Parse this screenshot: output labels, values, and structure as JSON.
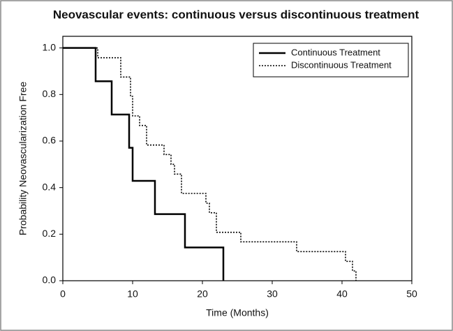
{
  "chart_data": {
    "type": "line",
    "title": "Neovascular events: continuous versus discontinuous treatment",
    "x_label": "Time (Months)",
    "y_label": "Probability Neovascularization Free",
    "xlim": [
      0,
      50
    ],
    "ylim": [
      0,
      1.05
    ],
    "xticks": [
      0,
      10,
      20,
      30,
      40,
      50
    ],
    "yticks": [
      {
        "value": 0,
        "label": "0.0"
      },
      0.2,
      0.4,
      0.6,
      0.8,
      {
        "value": 1,
        "label": "1.0"
      }
    ],
    "grid": false,
    "legend": "upper right",
    "series": [
      {
        "name": "Continuous Treatment",
        "color": "#000000",
        "style": "solid",
        "x": [
          0,
          4.7,
          4.7,
          7,
          7,
          9.5,
          9.5,
          10,
          10,
          13.2,
          13.2,
          17.5,
          17.5,
          23,
          23
        ],
        "values": [
          1,
          1,
          0.857,
          0.857,
          0.714,
          0.714,
          0.571,
          0.571,
          0.429,
          0.429,
          0.286,
          0.286,
          0.143,
          0.143,
          0
        ]
      },
      {
        "name": "Discontinuous Treatment",
        "color": "#000000",
        "style": "dotted",
        "x": [
          0,
          5,
          5,
          8.3,
          8.3,
          9.7,
          9.7,
          10,
          10,
          11,
          11,
          12,
          12,
          14.5,
          14.5,
          15.5,
          15.5,
          16,
          16,
          17,
          17,
          20.5,
          20.5,
          21,
          21,
          22,
          22,
          25.5,
          25.5,
          33.5,
          33.5,
          40.5,
          40.5,
          41.5,
          41.5,
          42,
          42
        ],
        "values": [
          1,
          1,
          0.958,
          0.958,
          0.875,
          0.875,
          0.792,
          0.792,
          0.708,
          0.708,
          0.667,
          0.667,
          0.583,
          0.583,
          0.542,
          0.542,
          0.5,
          0.5,
          0.458,
          0.458,
          0.375,
          0.375,
          0.333,
          0.333,
          0.292,
          0.292,
          0.208,
          0.208,
          0.167,
          0.167,
          0.125,
          0.125,
          0.083,
          0.083,
          0.042,
          0.042,
          0
        ]
      }
    ]
  }
}
